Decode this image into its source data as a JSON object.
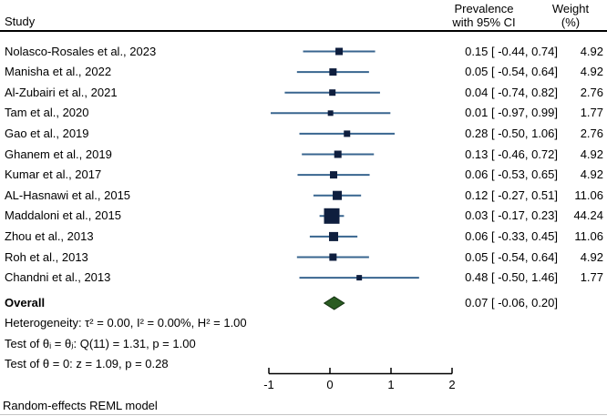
{
  "header": {
    "study": "Study",
    "effect_line1": "Prevalence",
    "effect_line2": "with 95% CI",
    "weight_line1": "Weight",
    "weight_line2": "(%)"
  },
  "chart_data": {
    "type": "forest",
    "title": "",
    "xlabel": "",
    "xlim": [
      -1,
      2
    ],
    "x_ticks": [
      "-1",
      "0",
      "1",
      "2"
    ],
    "x_tick_values": [
      -1,
      0,
      1,
      2
    ],
    "studies": [
      {
        "label": "Nolasco-Rosales et al., 2023",
        "estimate": 0.15,
        "ci_low": -0.44,
        "ci_high": 0.74,
        "weight": 4.92,
        "effect_text": "0.15 [ -0.44, 0.74]",
        "weight_text": "4.92"
      },
      {
        "label": "Manisha et al., 2022",
        "estimate": 0.05,
        "ci_low": -0.54,
        "ci_high": 0.64,
        "weight": 4.92,
        "effect_text": "0.05 [ -0.54, 0.64]",
        "weight_text": "4.92"
      },
      {
        "label": "Al-Zubairi et al., 2021",
        "estimate": 0.04,
        "ci_low": -0.74,
        "ci_high": 0.82,
        "weight": 2.76,
        "effect_text": "0.04 [ -0.74, 0.82]",
        "weight_text": "2.76"
      },
      {
        "label": "Tam et al., 2020",
        "estimate": 0.01,
        "ci_low": -0.97,
        "ci_high": 0.99,
        "weight": 1.77,
        "effect_text": "0.01 [ -0.97, 0.99]",
        "weight_text": "1.77"
      },
      {
        "label": "Gao et al., 2019",
        "estimate": 0.28,
        "ci_low": -0.5,
        "ci_high": 1.06,
        "weight": 2.76,
        "effect_text": "0.28 [ -0.50, 1.06]",
        "weight_text": "2.76"
      },
      {
        "label": "Ghanem et al., 2019",
        "estimate": 0.13,
        "ci_low": -0.46,
        "ci_high": 0.72,
        "weight": 4.92,
        "effect_text": "0.13 [ -0.46, 0.72]",
        "weight_text": "4.92"
      },
      {
        "label": "Kumar et al., 2017",
        "estimate": 0.06,
        "ci_low": -0.53,
        "ci_high": 0.65,
        "weight": 4.92,
        "effect_text": "0.06 [ -0.53, 0.65]",
        "weight_text": "4.92"
      },
      {
        "label": "AL-Hasnawi et al., 2015",
        "estimate": 0.12,
        "ci_low": -0.27,
        "ci_high": 0.51,
        "weight": 11.06,
        "effect_text": "0.12 [ -0.27, 0.51]",
        "weight_text": "11.06"
      },
      {
        "label": "Maddaloni et al., 2015",
        "estimate": 0.03,
        "ci_low": -0.17,
        "ci_high": 0.23,
        "weight": 44.24,
        "effect_text": "0.03 [ -0.17, 0.23]",
        "weight_text": "44.24"
      },
      {
        "label": "Zhou et al., 2013",
        "estimate": 0.06,
        "ci_low": -0.33,
        "ci_high": 0.45,
        "weight": 11.06,
        "effect_text": "0.06 [ -0.33, 0.45]",
        "weight_text": "11.06"
      },
      {
        "label": "Roh et al., 2013",
        "estimate": 0.05,
        "ci_low": -0.54,
        "ci_high": 0.64,
        "weight": 4.92,
        "effect_text": "0.05 [ -0.54, 0.64]",
        "weight_text": "4.92"
      },
      {
        "label": "Chandni et al., 2013",
        "estimate": 0.48,
        "ci_low": -0.5,
        "ci_high": 1.46,
        "weight": 1.77,
        "effect_text": "0.48 [ -0.50, 1.46]",
        "weight_text": "1.77"
      }
    ],
    "overall": {
      "label": "Overall",
      "estimate": 0.07,
      "ci_low": -0.06,
      "ci_high": 0.2,
      "effect_text": "0.07 [ -0.06, 0.20]"
    }
  },
  "stats": {
    "heterogeneity": "Heterogeneity: τ² = 0.00, I² = 0.00%, H² = 1.00",
    "test_theta_ij": "Test of θᵢ = θⱼ: Q(11) = 1.31, p = 1.00",
    "test_theta_zero": "Test of θ = 0: z = 1.09, p = 0.28"
  },
  "footer": {
    "model_note": "Random-effects REML model"
  },
  "colors": {
    "ci_line": "#38658f",
    "marker": "#0e1e3e",
    "diamond_fill": "#2a5c22",
    "diamond_stroke": "#123010",
    "axis": "#000000",
    "header_rule": "#000000"
  }
}
